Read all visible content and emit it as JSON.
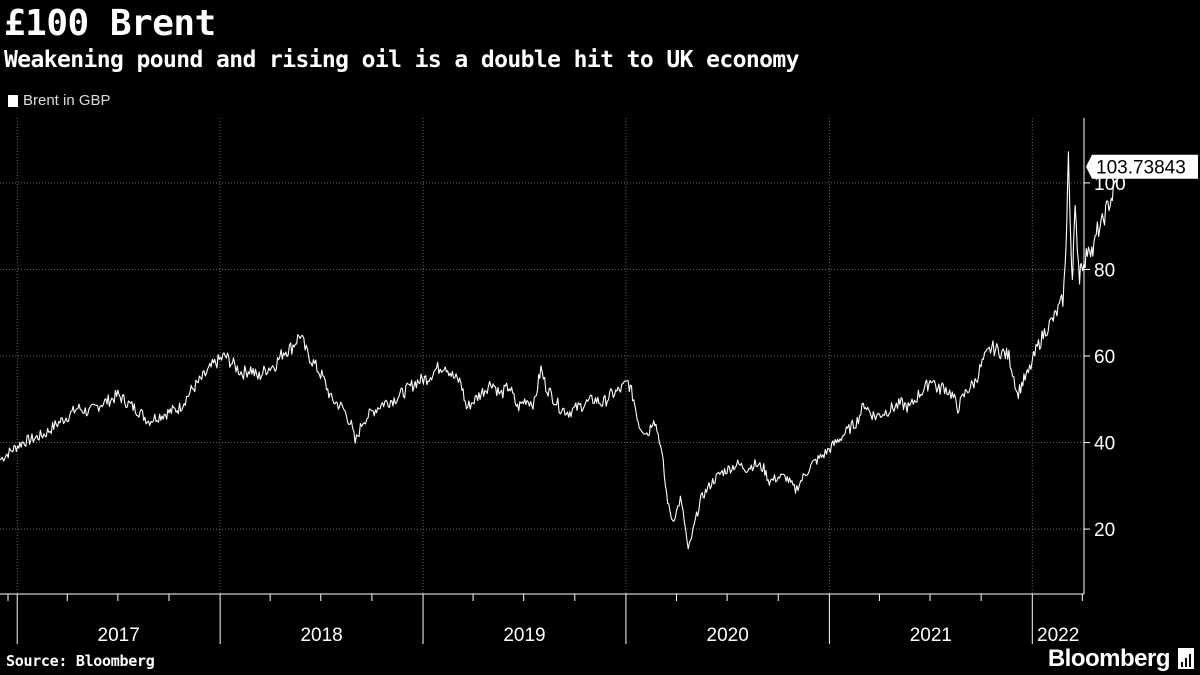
{
  "header": {
    "title": "£100 Brent",
    "subtitle": "Weakening pound and rising oil is a double hit to UK economy"
  },
  "legend": {
    "label": "Brent in GBP"
  },
  "footer": {
    "source": "Source: Bloomberg",
    "brand": "Bloomberg"
  },
  "colors": {
    "background": "#000000",
    "line": "#ffffff",
    "grid": "#666666"
  },
  "chart_data": {
    "type": "line",
    "title": "£100 Brent",
    "subtitle": "Weakening pound and rising oil is a double hit to UK economy",
    "ylim": [
      5,
      115
    ],
    "yticks": [
      20,
      40,
      60,
      80,
      100
    ],
    "xlim": [
      "2016-12-01",
      "2022-04-04"
    ],
    "year_labels": [
      "2017",
      "2018",
      "2019",
      "2020",
      "2021",
      "2022"
    ],
    "grid": true,
    "legend_position": "top-left",
    "last_value_label": "103.73843",
    "series": [
      {
        "name": "Brent in GBP",
        "points": [
          [
            "2016-12-01",
            36
          ],
          [
            "2016-12-20",
            38
          ],
          [
            "2017-01-10",
            40
          ],
          [
            "2017-02-01",
            41
          ],
          [
            "2017-02-20",
            42
          ],
          [
            "2017-03-10",
            44
          ],
          [
            "2017-04-01",
            46
          ],
          [
            "2017-04-20",
            48
          ],
          [
            "2017-05-10",
            47
          ],
          [
            "2017-06-01",
            49
          ],
          [
            "2017-06-20",
            50
          ],
          [
            "2017-07-01",
            51
          ],
          [
            "2017-07-20",
            49
          ],
          [
            "2017-08-10",
            47
          ],
          [
            "2017-08-25",
            45
          ],
          [
            "2017-09-10",
            46
          ],
          [
            "2017-10-01",
            47
          ],
          [
            "2017-10-20",
            48
          ],
          [
            "2017-11-10",
            52
          ],
          [
            "2017-12-01",
            55
          ],
          [
            "2017-12-20",
            58
          ],
          [
            "2018-01-10",
            60
          ],
          [
            "2018-01-25",
            58
          ],
          [
            "2018-02-10",
            56
          ],
          [
            "2018-02-25",
            57
          ],
          [
            "2018-03-10",
            55
          ],
          [
            "2018-03-25",
            57
          ],
          [
            "2018-04-10",
            58
          ],
          [
            "2018-04-25",
            61
          ],
          [
            "2018-05-10",
            62
          ],
          [
            "2018-05-25",
            65
          ],
          [
            "2018-06-05",
            61
          ],
          [
            "2018-06-20",
            58
          ],
          [
            "2018-07-05",
            55
          ],
          [
            "2018-07-20",
            50
          ],
          [
            "2018-08-10",
            48
          ],
          [
            "2018-08-25",
            44
          ],
          [
            "2018-09-01",
            40
          ],
          [
            "2018-09-15",
            45
          ],
          [
            "2018-10-01",
            47
          ],
          [
            "2018-10-20",
            49
          ],
          [
            "2018-11-10",
            50
          ],
          [
            "2018-12-01",
            52
          ],
          [
            "2018-12-20",
            54
          ],
          [
            "2019-01-10",
            55
          ],
          [
            "2019-01-25",
            57
          ],
          [
            "2019-02-10",
            58
          ],
          [
            "2019-02-25",
            55
          ],
          [
            "2019-03-10",
            54
          ],
          [
            "2019-03-20",
            48
          ],
          [
            "2019-04-05",
            50
          ],
          [
            "2019-04-20",
            52
          ],
          [
            "2019-05-05",
            54
          ],
          [
            "2019-05-20",
            51
          ],
          [
            "2019-06-05",
            53
          ],
          [
            "2019-06-20",
            48
          ],
          [
            "2019-07-05",
            50
          ],
          [
            "2019-07-20",
            49
          ],
          [
            "2019-08-01",
            57
          ],
          [
            "2019-08-10",
            53
          ],
          [
            "2019-08-20",
            51
          ],
          [
            "2019-09-05",
            48
          ],
          [
            "2019-09-20",
            47
          ],
          [
            "2019-10-05",
            48
          ],
          [
            "2019-10-20",
            49
          ],
          [
            "2019-11-05",
            50
          ],
          [
            "2019-11-20",
            49
          ],
          [
            "2019-12-05",
            51
          ],
          [
            "2019-12-20",
            52
          ],
          [
            "2020-01-05",
            54
          ],
          [
            "2020-01-15",
            50
          ],
          [
            "2020-01-25",
            44
          ],
          [
            "2020-02-10",
            42
          ],
          [
            "2020-02-20",
            46
          ],
          [
            "2020-03-01",
            41
          ],
          [
            "2020-03-08",
            35
          ],
          [
            "2020-03-12",
            30
          ],
          [
            "2020-03-18",
            25
          ],
          [
            "2020-03-25",
            22
          ],
          [
            "2020-04-01",
            24
          ],
          [
            "2020-04-08",
            27
          ],
          [
            "2020-04-15",
            22
          ],
          [
            "2020-04-22",
            15
          ],
          [
            "2020-04-28",
            18
          ],
          [
            "2020-05-05",
            22
          ],
          [
            "2020-05-15",
            27
          ],
          [
            "2020-05-25",
            29
          ],
          [
            "2020-06-05",
            31
          ],
          [
            "2020-06-20",
            33
          ],
          [
            "2020-07-05",
            34
          ],
          [
            "2020-07-20",
            35
          ],
          [
            "2020-08-05",
            34
          ],
          [
            "2020-08-20",
            35
          ],
          [
            "2020-09-05",
            34
          ],
          [
            "2020-09-15",
            31
          ],
          [
            "2020-10-01",
            32
          ],
          [
            "2020-10-15",
            32
          ],
          [
            "2020-11-01",
            29
          ],
          [
            "2020-11-15",
            32
          ],
          [
            "2020-12-01",
            35
          ],
          [
            "2020-12-20",
            37
          ],
          [
            "2021-01-05",
            39
          ],
          [
            "2021-01-20",
            41
          ],
          [
            "2021-02-05",
            43
          ],
          [
            "2021-02-20",
            45
          ],
          [
            "2021-03-05",
            49
          ],
          [
            "2021-03-15",
            47
          ],
          [
            "2021-03-25",
            46
          ],
          [
            "2021-04-10",
            47
          ],
          [
            "2021-04-25",
            48
          ],
          [
            "2021-05-10",
            49
          ],
          [
            "2021-05-25",
            48
          ],
          [
            "2021-06-10",
            51
          ],
          [
            "2021-06-25",
            53
          ],
          [
            "2021-07-05",
            55
          ],
          [
            "2021-07-15",
            52
          ],
          [
            "2021-07-25",
            53
          ],
          [
            "2021-08-10",
            51
          ],
          [
            "2021-08-20",
            48
          ],
          [
            "2021-09-05",
            52
          ],
          [
            "2021-09-20",
            54
          ],
          [
            "2021-10-05",
            59
          ],
          [
            "2021-10-20",
            62
          ],
          [
            "2021-11-05",
            61
          ],
          [
            "2021-11-20",
            60
          ],
          [
            "2021-12-01",
            54
          ],
          [
            "2021-12-05",
            51
          ],
          [
            "2021-12-15",
            54
          ],
          [
            "2021-12-25",
            56
          ],
          [
            "2022-01-10",
            62
          ],
          [
            "2022-01-25",
            66
          ],
          [
            "2022-02-10",
            69
          ],
          [
            "2022-02-25",
            73
          ],
          [
            "2022-03-01",
            80
          ],
          [
            "2022-03-04",
            92
          ],
          [
            "2022-03-07",
            107
          ],
          [
            "2022-03-09",
            95
          ],
          [
            "2022-03-11",
            88
          ],
          [
            "2022-03-14",
            78
          ],
          [
            "2022-03-16",
            85
          ],
          [
            "2022-03-19",
            93
          ],
          [
            "2022-03-23",
            86
          ],
          [
            "2022-03-27",
            78
          ],
          [
            "2022-03-30",
            83
          ],
          [
            "2022-04-04",
            80
          ],
          [
            "2022-04-12",
            86
          ],
          [
            "2022-04-20",
            84
          ],
          [
            "2022-04-28",
            89
          ],
          [
            "2022-05-05",
            90
          ],
          [
            "2022-05-15",
            94
          ],
          [
            "2022-05-25",
            97
          ],
          [
            "2022-06-02",
            101
          ],
          [
            "2022-06-08",
            103.74
          ]
        ]
      }
    ]
  }
}
